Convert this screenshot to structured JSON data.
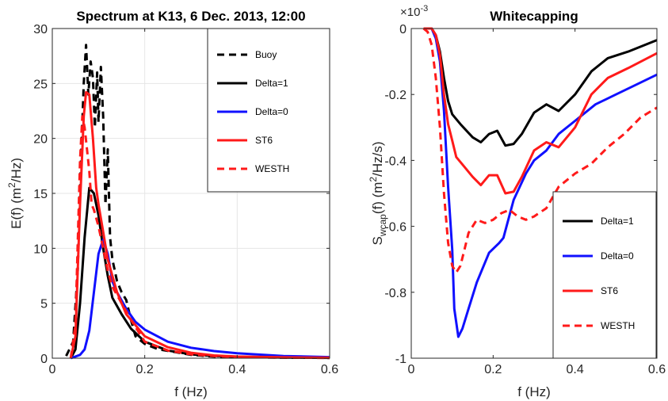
{
  "chart_data": [
    {
      "type": "line",
      "title": "Spectrum at K13, 6 Dec. 2013, 12:00",
      "xlabel": "f (Hz)",
      "ylabel_main": "E(f) (m",
      "ylabel_sup": "2",
      "ylabel_tail": "/Hz)",
      "xlim": [
        0,
        0.6
      ],
      "ylim": [
        0,
        30
      ],
      "x_ticks": [
        0,
        0.2,
        0.4,
        0.6
      ],
      "x_tick_labels": [
        "0",
        "0.2",
        "0.4",
        "0.6"
      ],
      "y_ticks": [
        0,
        5,
        10,
        15,
        20,
        25,
        30
      ],
      "y_tick_labels": [
        "0",
        "5",
        "10",
        "15",
        "20",
        "25",
        "30"
      ],
      "grid": true,
      "legend_position": "top-right",
      "series": [
        {
          "name": "Buoy",
          "color": "#000000",
          "dash": "dashed",
          "points": [
            [
              0.03,
              0.2
            ],
            [
              0.045,
              1.5
            ],
            [
              0.055,
              8
            ],
            [
              0.062,
              18
            ],
            [
              0.068,
              25
            ],
            [
              0.073,
              28.5
            ],
            [
              0.078,
              24
            ],
            [
              0.083,
              27
            ],
            [
              0.088,
              25.5
            ],
            [
              0.092,
              21
            ],
            [
              0.097,
              26
            ],
            [
              0.1,
              21.5
            ],
            [
              0.105,
              26.5
            ],
            [
              0.11,
              22
            ],
            [
              0.115,
              14
            ],
            [
              0.12,
              19
            ],
            [
              0.125,
              11
            ],
            [
              0.13,
              9
            ],
            [
              0.14,
              7
            ],
            [
              0.15,
              6
            ],
            [
              0.16,
              5.3
            ],
            [
              0.17,
              3.5
            ],
            [
              0.18,
              2
            ],
            [
              0.2,
              1.3
            ],
            [
              0.23,
              0.8
            ],
            [
              0.26,
              0.6
            ],
            [
              0.3,
              0.3
            ],
            [
              0.35,
              0.15
            ],
            [
              0.4,
              0.1
            ],
            [
              0.5,
              0.05
            ],
            [
              0.6,
              0.03
            ]
          ]
        },
        {
          "name": "Delta=1",
          "color": "#000000",
          "dash": "solid",
          "points": [
            [
              0.04,
              0
            ],
            [
              0.05,
              0.8
            ],
            [
              0.06,
              5
            ],
            [
              0.07,
              11
            ],
            [
              0.08,
              15.5
            ],
            [
              0.09,
              15
            ],
            [
              0.1,
              13
            ],
            [
              0.11,
              10
            ],
            [
              0.12,
              7.5
            ],
            [
              0.13,
              5.5
            ],
            [
              0.15,
              4
            ],
            [
              0.17,
              2.7
            ],
            [
              0.2,
              1.5
            ],
            [
              0.25,
              0.7
            ],
            [
              0.3,
              0.35
            ],
            [
              0.35,
              0.2
            ],
            [
              0.4,
              0.12
            ],
            [
              0.5,
              0.06
            ],
            [
              0.6,
              0.03
            ]
          ]
        },
        {
          "name": "Delta=0",
          "color": "#1010ff",
          "dash": "solid",
          "points": [
            [
              0.04,
              0
            ],
            [
              0.06,
              0.3
            ],
            [
              0.07,
              0.8
            ],
            [
              0.08,
              2.5
            ],
            [
              0.09,
              6
            ],
            [
              0.1,
              9.5
            ],
            [
              0.11,
              10.8
            ],
            [
              0.12,
              9.5
            ],
            [
              0.13,
              7
            ],
            [
              0.14,
              6
            ],
            [
              0.16,
              4.5
            ],
            [
              0.18,
              3.3
            ],
            [
              0.2,
              2.6
            ],
            [
              0.25,
              1.5
            ],
            [
              0.3,
              0.95
            ],
            [
              0.35,
              0.65
            ],
            [
              0.4,
              0.45
            ],
            [
              0.5,
              0.2
            ],
            [
              0.6,
              0.1
            ]
          ]
        },
        {
          "name": "ST6",
          "color": "#ff1a1a",
          "dash": "solid",
          "points": [
            [
              0.04,
              0
            ],
            [
              0.05,
              2
            ],
            [
              0.06,
              14
            ],
            [
              0.068,
              22
            ],
            [
              0.073,
              24.2
            ],
            [
              0.08,
              24
            ],
            [
              0.088,
              20
            ],
            [
              0.095,
              15.5
            ],
            [
              0.1,
              14
            ],
            [
              0.11,
              11.5
            ],
            [
              0.12,
              9
            ],
            [
              0.13,
              7.5
            ],
            [
              0.14,
              6
            ],
            [
              0.16,
              4
            ],
            [
              0.18,
              3
            ],
            [
              0.2,
              2
            ],
            [
              0.25,
              1
            ],
            [
              0.3,
              0.5
            ],
            [
              0.35,
              0.25
            ],
            [
              0.4,
              0.15
            ],
            [
              0.5,
              0.08
            ],
            [
              0.6,
              0.04
            ]
          ]
        },
        {
          "name": "WESTH",
          "color": "#ff1a1a",
          "dash": "dashed",
          "points": [
            [
              0.04,
              0
            ],
            [
              0.05,
              3
            ],
            [
              0.06,
              18
            ],
            [
              0.065,
              22
            ],
            [
              0.07,
              21
            ],
            [
              0.075,
              19
            ],
            [
              0.08,
              17
            ],
            [
              0.085,
              14
            ],
            [
              0.09,
              13.5
            ],
            [
              0.1,
              12
            ],
            [
              0.11,
              10
            ],
            [
              0.12,
              8
            ],
            [
              0.13,
              6.5
            ],
            [
              0.15,
              5
            ],
            [
              0.17,
              3.5
            ],
            [
              0.2,
              1.5
            ],
            [
              0.25,
              0.7
            ],
            [
              0.3,
              0.35
            ],
            [
              0.35,
              0.2
            ],
            [
              0.4,
              0.1
            ],
            [
              0.5,
              0.05
            ],
            [
              0.6,
              0.02
            ]
          ]
        }
      ]
    },
    {
      "type": "line",
      "title": "Whitecapping",
      "xlabel": "f (Hz)",
      "ylabel_s": "S",
      "ylabel_sub": "wcap",
      "ylabel_mid": "(f) (m",
      "ylabel_sup": "2",
      "ylabel_tail": "/Hz/s)",
      "exponent_label": "×10",
      "exponent_power": "-3",
      "xlim": [
        0,
        0.6
      ],
      "ylim": [
        -1,
        0
      ],
      "x_ticks": [
        0,
        0.2,
        0.4,
        0.6
      ],
      "x_tick_labels": [
        "0",
        "0.2",
        "0.4",
        "0.6"
      ],
      "y_ticks": [
        0,
        -0.2,
        -0.4,
        -0.6,
        -0.8,
        -1
      ],
      "y_tick_labels": [
        "0",
        "-0.2",
        "-0.4",
        "-0.6",
        "-0.8",
        "-1"
      ],
      "grid": false,
      "legend_position": "bottom-right",
      "series": [
        {
          "name": "Delta=1",
          "color": "#000000",
          "dash": "solid",
          "points": [
            [
              0.03,
              0
            ],
            [
              0.05,
              0
            ],
            [
              0.06,
              -0.02
            ],
            [
              0.07,
              -0.07
            ],
            [
              0.08,
              -0.15
            ],
            [
              0.09,
              -0.22
            ],
            [
              0.1,
              -0.26
            ],
            [
              0.12,
              -0.29
            ],
            [
              0.15,
              -0.33
            ],
            [
              0.17,
              -0.345
            ],
            [
              0.19,
              -0.32
            ],
            [
              0.21,
              -0.31
            ],
            [
              0.23,
              -0.355
            ],
            [
              0.25,
              -0.35
            ],
            [
              0.27,
              -0.32
            ],
            [
              0.3,
              -0.255
            ],
            [
              0.33,
              -0.23
            ],
            [
              0.36,
              -0.25
            ],
            [
              0.4,
              -0.2
            ],
            [
              0.44,
              -0.13
            ],
            [
              0.48,
              -0.09
            ],
            [
              0.53,
              -0.07
            ],
            [
              0.6,
              -0.035
            ]
          ]
        },
        {
          "name": "Delta=0",
          "color": "#1010ff",
          "dash": "solid",
          "points": [
            [
              0.03,
              0
            ],
            [
              0.05,
              0
            ],
            [
              0.06,
              -0.03
            ],
            [
              0.07,
              -0.1
            ],
            [
              0.08,
              -0.25
            ],
            [
              0.09,
              -0.48
            ],
            [
              0.1,
              -0.67
            ],
            [
              0.105,
              -0.85
            ],
            [
              0.115,
              -0.935
            ],
            [
              0.125,
              -0.91
            ],
            [
              0.14,
              -0.85
            ],
            [
              0.16,
              -0.77
            ],
            [
              0.19,
              -0.68
            ],
            [
              0.215,
              -0.65
            ],
            [
              0.225,
              -0.635
            ],
            [
              0.25,
              -0.52
            ],
            [
              0.28,
              -0.44
            ],
            [
              0.3,
              -0.4
            ],
            [
              0.33,
              -0.37
            ],
            [
              0.36,
              -0.32
            ],
            [
              0.4,
              -0.28
            ],
            [
              0.45,
              -0.23
            ],
            [
              0.5,
              -0.2
            ],
            [
              0.55,
              -0.17
            ],
            [
              0.6,
              -0.14
            ]
          ]
        },
        {
          "name": "ST6",
          "color": "#ff1a1a",
          "dash": "solid",
          "points": [
            [
              0.03,
              0
            ],
            [
              0.05,
              0
            ],
            [
              0.06,
              -0.02
            ],
            [
              0.07,
              -0.08
            ],
            [
              0.08,
              -0.2
            ],
            [
              0.09,
              -0.29
            ],
            [
              0.1,
              -0.34
            ],
            [
              0.11,
              -0.39
            ],
            [
              0.13,
              -0.42
            ],
            [
              0.15,
              -0.45
            ],
            [
              0.17,
              -0.475
            ],
            [
              0.19,
              -0.445
            ],
            [
              0.21,
              -0.445
            ],
            [
              0.23,
              -0.5
            ],
            [
              0.25,
              -0.495
            ],
            [
              0.27,
              -0.45
            ],
            [
              0.3,
              -0.37
            ],
            [
              0.33,
              -0.345
            ],
            [
              0.36,
              -0.36
            ],
            [
              0.4,
              -0.3
            ],
            [
              0.44,
              -0.2
            ],
            [
              0.48,
              -0.15
            ],
            [
              0.53,
              -0.12
            ],
            [
              0.6,
              -0.075
            ]
          ]
        },
        {
          "name": "WESTH",
          "color": "#ff1a1a",
          "dash": "dashed",
          "points": [
            [
              0.03,
              0
            ],
            [
              0.04,
              -0.01
            ],
            [
              0.05,
              -0.05
            ],
            [
              0.06,
              -0.15
            ],
            [
              0.07,
              -0.3
            ],
            [
              0.08,
              -0.5
            ],
            [
              0.09,
              -0.65
            ],
            [
              0.1,
              -0.72
            ],
            [
              0.11,
              -0.74
            ],
            [
              0.12,
              -0.72
            ],
            [
              0.13,
              -0.67
            ],
            [
              0.14,
              -0.62
            ],
            [
              0.16,
              -0.58
            ],
            [
              0.18,
              -0.59
            ],
            [
              0.2,
              -0.58
            ],
            [
              0.22,
              -0.56
            ],
            [
              0.24,
              -0.55
            ],
            [
              0.26,
              -0.57
            ],
            [
              0.28,
              -0.58
            ],
            [
              0.3,
              -0.57
            ],
            [
              0.33,
              -0.545
            ],
            [
              0.36,
              -0.48
            ],
            [
              0.4,
              -0.44
            ],
            [
              0.44,
              -0.41
            ],
            [
              0.48,
              -0.36
            ],
            [
              0.52,
              -0.32
            ],
            [
              0.56,
              -0.27
            ],
            [
              0.6,
              -0.24
            ]
          ]
        }
      ]
    }
  ]
}
